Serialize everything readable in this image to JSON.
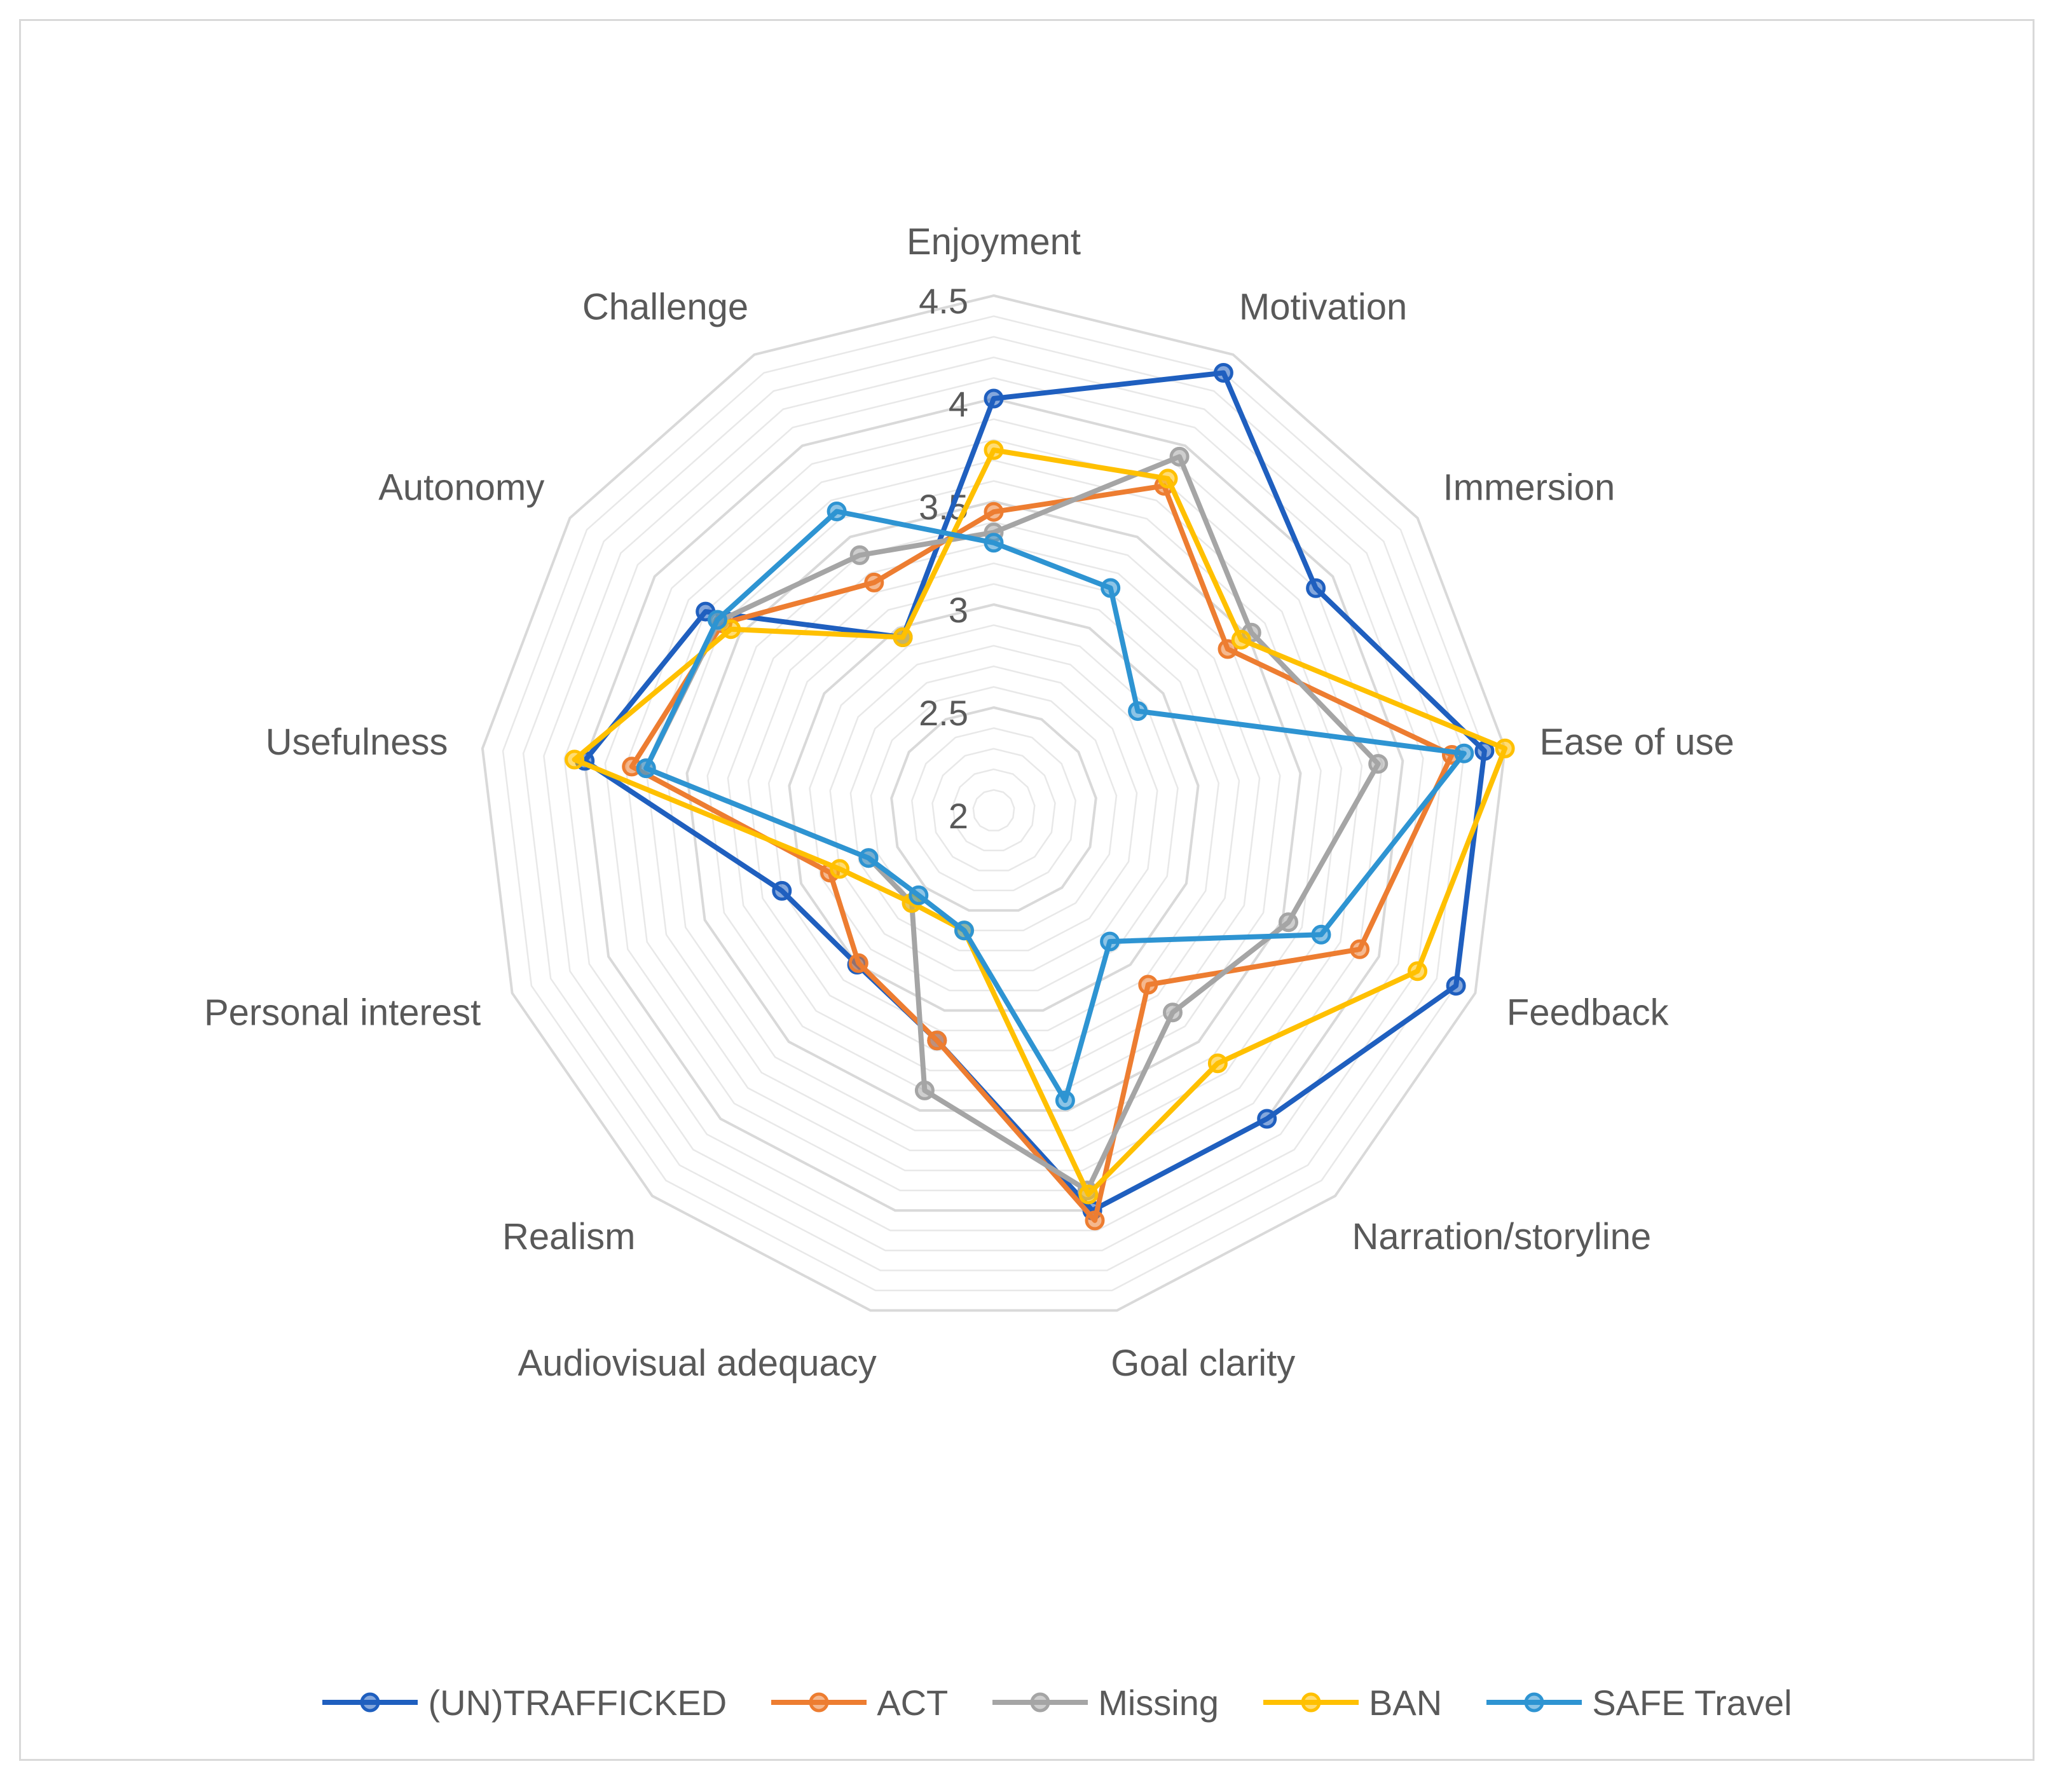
{
  "chart_data": {
    "type": "radar",
    "title": "",
    "axes": [
      "Enjoyment",
      "Motivation",
      "Immersion",
      "Ease of use",
      "Feedback",
      "Narration/storyline",
      "Goal clarity",
      "Audiovisual adequacy",
      "Realism",
      "Personal interest",
      "Usefulness",
      "Autonomy",
      "Challenge"
    ],
    "rlim": [
      2,
      4.5
    ],
    "ticks": [
      "2",
      "2.5",
      "3",
      "3.5",
      "4",
      "4.5"
    ],
    "tick_values": [
      2,
      2.5,
      3,
      3.5,
      4,
      4.5
    ],
    "minor_grid_step": 0.1,
    "grid": true,
    "legend_position": "bottom",
    "series": [
      {
        "name": "(UN)TRAFFICKED",
        "color": "#1f5fbf",
        "values": [
          4.0,
          4.4,
          3.9,
          4.4,
          4.4,
          4.0,
          4.0,
          3.15,
          3.0,
          3.1,
          4.0,
          3.7,
          2.95
        ]
      },
      {
        "name": "ACT",
        "color": "#ed7d31",
        "values": [
          3.45,
          3.78,
          3.38,
          4.24,
          3.9,
          3.13,
          4.05,
          3.15,
          2.99,
          2.85,
          3.77,
          3.6,
          3.25
        ]
      },
      {
        "name": "Missing",
        "color": "#a5a5a5",
        "values": [
          3.35,
          3.94,
          3.52,
          3.88,
          3.53,
          3.31,
          3.9,
          3.4,
          2.6,
          2.65,
          3.7,
          3.62,
          3.4
        ]
      },
      {
        "name": "BAN",
        "color": "#ffc000",
        "values": [
          3.75,
          3.82,
          3.46,
          4.5,
          4.2,
          3.64,
          3.92,
          2.6,
          2.6,
          2.8,
          4.05,
          3.55,
          2.95
        ]
      },
      {
        "name": "SAFE Travel",
        "color": "#2e94d2",
        "values": [
          3.3,
          3.22,
          2.85,
          4.3,
          3.7,
          2.85,
          3.45,
          2.6,
          2.55,
          2.65,
          3.7,
          3.63,
          3.64
        ]
      }
    ]
  }
}
